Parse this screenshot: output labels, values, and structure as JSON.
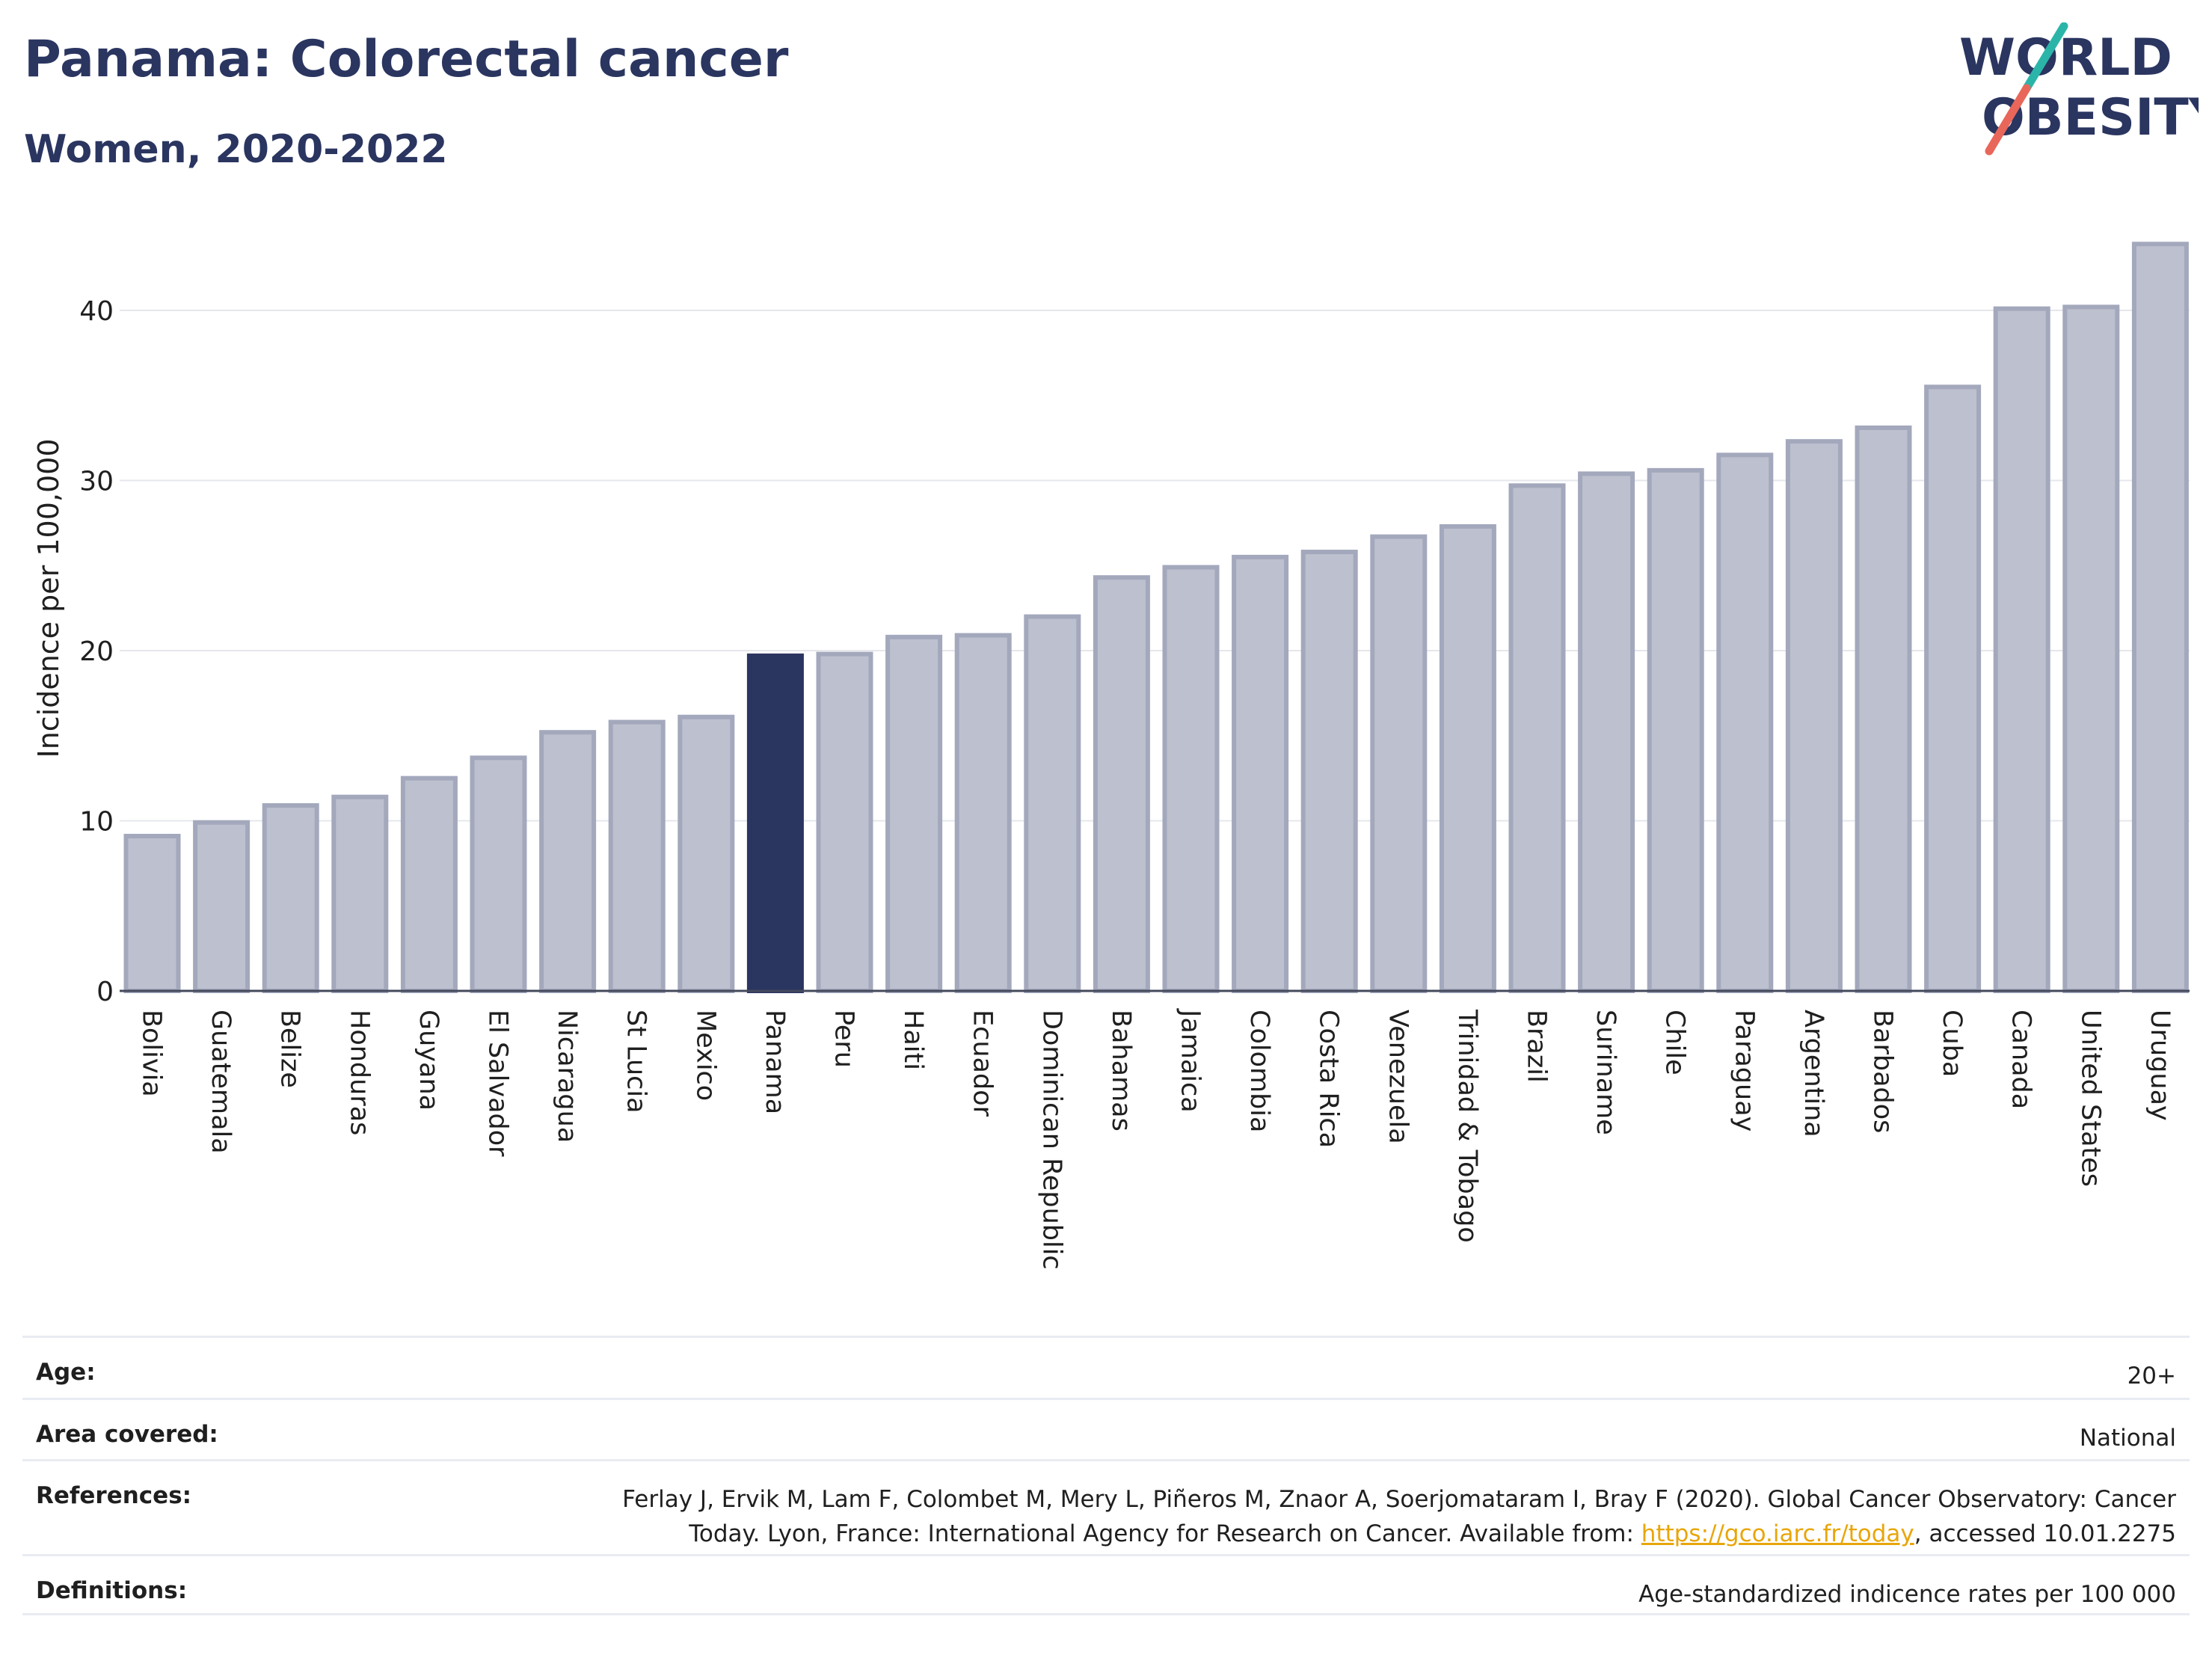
{
  "header": {
    "title": "Panama: Colorectal cancer",
    "subtitle": "Women, 2020-2022"
  },
  "logo": {
    "line1": "WORLD",
    "line2": "OBESITY",
    "accent_teal": "#2bb5a9",
    "accent_coral": "#e8675a"
  },
  "colors": {
    "highlight": "#2a3560",
    "bar_fill": "#bdc0ce",
    "bar_stroke": "#a3a8bc",
    "text": "#1f1f1f",
    "grid": "#e6e7ec"
  },
  "chart_data": {
    "type": "bar",
    "ylabel": "Incidence per 100,000",
    "ylim": [
      0,
      44
    ],
    "yticks": [
      0,
      10,
      20,
      30,
      40
    ],
    "grid": true,
    "highlight": "Panama",
    "categories": [
      "Bolivia",
      "Guatemala",
      "Belize",
      "Honduras",
      "Guyana",
      "El Salvador",
      "Nicaragua",
      "St Lucia",
      "Mexico",
      "Panama",
      "Peru",
      "Haiti",
      "Ecuador",
      "Dominican Republic",
      "Bahamas",
      "Jamaica",
      "Colombia",
      "Costa Rica",
      "Venezuela",
      "Trinidad & Tobago",
      "Brazil",
      "Suriname",
      "Chile",
      "Paraguay",
      "Argentina",
      "Barbados",
      "Cuba",
      "Canada",
      "United States",
      "Uruguay"
    ],
    "values": [
      9.1,
      9.9,
      10.9,
      11.4,
      12.5,
      13.7,
      15.2,
      15.8,
      16.1,
      19.7,
      19.8,
      20.8,
      20.9,
      22.0,
      24.3,
      24.9,
      25.5,
      25.8,
      26.7,
      27.3,
      29.7,
      30.4,
      30.6,
      31.5,
      32.3,
      33.1,
      35.5,
      40.1,
      40.2,
      43.9
    ]
  },
  "meta": {
    "age_label": "Age:",
    "age_value": "20+",
    "area_label": "Area covered:",
    "area_value": "National",
    "references_label": "References:",
    "references_line1": "Ferlay J, Ervik M, Lam F, Colombet M, Mery L, Piñeros M, Znaor A, Soerjomataram I, Bray F (2020). Global Cancer Observatory: Cancer",
    "references_line2_pre": "Today. Lyon, France: International Agency for Research on Cancer. Available from: ",
    "references_link": "https://gco.iarc.fr/today",
    "references_line2_post": ", accessed 10.01.2275",
    "definitions_label": "Definitions:",
    "definitions_value": "Age-standardized indicence rates per 100 000"
  }
}
